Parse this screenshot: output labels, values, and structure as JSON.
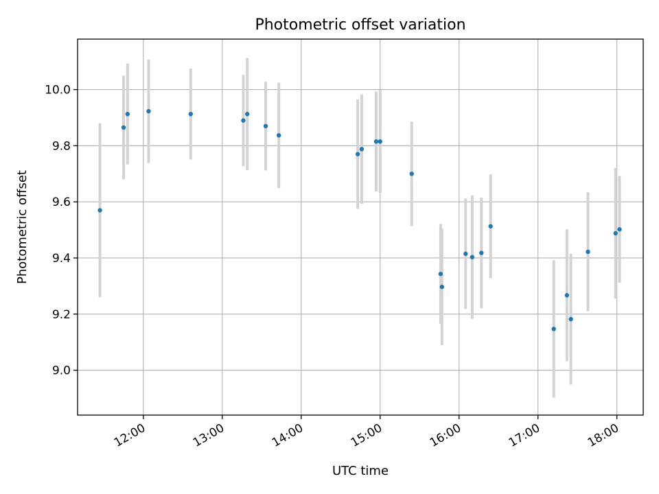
{
  "chart_data": {
    "type": "scatter",
    "title": "Photometric offset variation",
    "xlabel": "UTC time",
    "ylabel": "Photometric offset",
    "x_axis_kind": "time",
    "xlim": [
      "11:10",
      "18:20"
    ],
    "ylim": [
      8.84,
      10.18
    ],
    "x_ticks": [
      "12:00",
      "13:00",
      "14:00",
      "15:00",
      "16:00",
      "17:00",
      "18:00"
    ],
    "y_ticks": [
      "9.0",
      "9.2",
      "9.4",
      "9.6",
      "9.8",
      "10.0"
    ],
    "grid": true,
    "colors": {
      "point": "#1f77b4",
      "error_bar": "#d3d3d3",
      "grid": "#b0b0b0"
    },
    "series": [
      {
        "points": [
          {
            "x": "11:27",
            "y": 9.57,
            "yerr": 0.31
          },
          {
            "x": "11:45",
            "y": 9.865,
            "yerr": 0.185
          },
          {
            "x": "11:48",
            "y": 9.913,
            "yerr": 0.18
          },
          {
            "x": "12:04",
            "y": 9.923,
            "yerr": 0.185
          },
          {
            "x": "12:36",
            "y": 9.913,
            "yerr": 0.162
          },
          {
            "x": "13:16",
            "y": 9.89,
            "yerr": 0.163
          },
          {
            "x": "13:19",
            "y": 9.913,
            "yerr": 0.2
          },
          {
            "x": "13:33",
            "y": 9.87,
            "yerr": 0.158
          },
          {
            "x": "13:43",
            "y": 9.837,
            "yerr": 0.188
          },
          {
            "x": "14:43",
            "y": 9.77,
            "yerr": 0.195
          },
          {
            "x": "14:46",
            "y": 9.788,
            "yerr": 0.195
          },
          {
            "x": "14:57",
            "y": 9.815,
            "yerr": 0.178
          },
          {
            "x": "15:00",
            "y": 9.815,
            "yerr": 0.183
          },
          {
            "x": "15:24",
            "y": 9.7,
            "yerr": 0.186
          },
          {
            "x": "15:46",
            "y": 9.343,
            "yerr": 0.178
          },
          {
            "x": "15:47",
            "y": 9.297,
            "yerr": 0.208
          },
          {
            "x": "16:05",
            "y": 9.415,
            "yerr": 0.197
          },
          {
            "x": "16:10",
            "y": 9.403,
            "yerr": 0.22
          },
          {
            "x": "16:17",
            "y": 9.418,
            "yerr": 0.197
          },
          {
            "x": "16:24",
            "y": 9.513,
            "yerr": 0.185
          },
          {
            "x": "17:12",
            "y": 9.147,
            "yerr": 0.245
          },
          {
            "x": "17:22",
            "y": 9.267,
            "yerr": 0.235
          },
          {
            "x": "17:25",
            "y": 9.182,
            "yerr": 0.233
          },
          {
            "x": "17:38",
            "y": 9.422,
            "yerr": 0.212
          },
          {
            "x": "17:59",
            "y": 9.488,
            "yerr": 0.233
          },
          {
            "x": "18:02",
            "y": 9.502,
            "yerr": 0.19
          }
        ]
      }
    ]
  }
}
